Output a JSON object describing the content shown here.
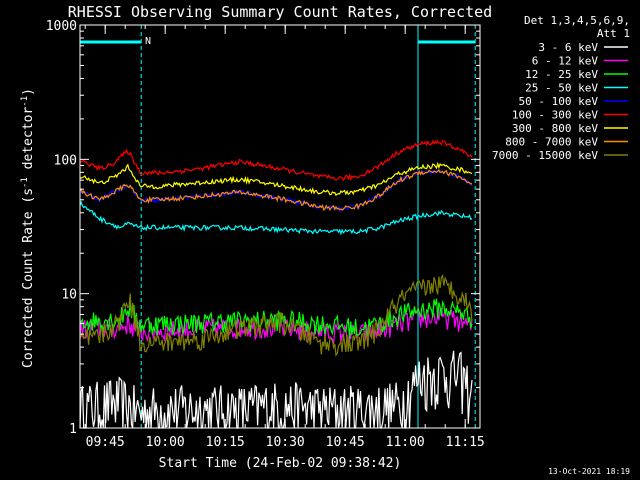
{
  "chart_data": {
    "type": "line",
    "title": "RHESSI Observing Summary Count Rates, Corrected",
    "xlabel": "Start Time (24-Feb-02 09:38:42)",
    "ylabel_main": "Corrected Count Rate (s",
    "ylabel_sup1": "-1",
    "ylabel_mid": " detector",
    "ylabel_sup2": "-1",
    "ylabel_end": ")",
    "yscale": "log",
    "ylim": [
      1,
      1000
    ],
    "xlim_minutes": [
      0,
      100
    ],
    "x_unit": "minutes after 09:38:42",
    "x_ticks": [
      {
        "label": "09:45",
        "t": 6.3
      },
      {
        "label": "10:00",
        "t": 21.3
      },
      {
        "label": "10:15",
        "t": 36.3
      },
      {
        "label": "10:30",
        "t": 51.3
      },
      {
        "label": "10:45",
        "t": 66.3
      },
      {
        "label": "11:00",
        "t": 81.3
      },
      {
        "label": "11:15",
        "t": 96.3
      }
    ],
    "y_ticks": [
      {
        "label": "1",
        "v": 1
      },
      {
        "label": "10",
        "v": 10
      },
      {
        "label": "100",
        "v": 100
      },
      {
        "label": "1000",
        "v": 1000
      }
    ],
    "legend": {
      "placement": "top-right",
      "header1": "Det 1,3,4,5,6,9,",
      "header2": "Att 1"
    },
    "annotations": {
      "night_marker": "N",
      "footer_date": "13-Oct-2021 18:19"
    },
    "bands": [
      {
        "start": 0,
        "end": 15.3,
        "color": "#00ffff"
      },
      {
        "start": 84.5,
        "end": 98.8,
        "color": "#00ffff"
      }
    ],
    "series": [
      {
        "name": "3 - 6 keV",
        "color": "#ffffff",
        "t": [
          0,
          10,
          15,
          20,
          30,
          40,
          50,
          60,
          70,
          80,
          85,
          90,
          95,
          98
        ],
        "values": [
          1.4,
          1.6,
          1.3,
          1.4,
          1.4,
          1.4,
          1.5,
          1.4,
          1.4,
          1.5,
          2.4,
          2.6,
          2.5,
          1.8
        ]
      },
      {
        "name": "6 - 12 keV",
        "color": "#ff00ff",
        "t": [
          0,
          10,
          12,
          15,
          20,
          30,
          40,
          50,
          60,
          70,
          75,
          80,
          85,
          90,
          95,
          98
        ],
        "values": [
          5.5,
          5.6,
          6.0,
          5.2,
          5.3,
          5.5,
          5.6,
          5.6,
          5.2,
          5.0,
          5.4,
          6.0,
          6.5,
          6.7,
          6.3,
          5.6
        ]
      },
      {
        "name": "12 - 25 keV",
        "color": "#00ff00",
        "t": [
          0,
          10,
          12,
          15,
          20,
          30,
          40,
          50,
          60,
          70,
          75,
          80,
          85,
          90,
          95,
          98
        ],
        "values": [
          6.2,
          6.5,
          8.0,
          5.9,
          6.0,
          6.1,
          6.3,
          6.4,
          6.0,
          5.5,
          6.0,
          7.0,
          7.6,
          7.9,
          7.4,
          6.6
        ]
      },
      {
        "name": "25 - 50 keV",
        "color": "#00ffff",
        "t": [
          0,
          5,
          10,
          12,
          15,
          20,
          30,
          40,
          50,
          60,
          65,
          70,
          75,
          80,
          85,
          90,
          95,
          98
        ],
        "values": [
          47,
          36,
          31,
          33,
          31,
          31,
          31,
          31,
          30,
          29,
          29,
          29,
          31,
          35,
          38,
          40,
          38,
          37
        ]
      },
      {
        "name": "50 - 100 keV",
        "color": "#0000ff",
        "t": [
          0,
          5,
          9,
          12,
          15,
          20,
          30,
          40,
          50,
          60,
          65,
          70,
          75,
          80,
          85,
          90,
          95,
          98
        ],
        "values": [
          58,
          50,
          58,
          65,
          50,
          50,
          53,
          57,
          51,
          44,
          43,
          45,
          54,
          70,
          80,
          82,
          74,
          64
        ]
      },
      {
        "name": "100 - 300 keV",
        "color": "#ff0000",
        "t": [
          0,
          5,
          8,
          12,
          15,
          20,
          30,
          40,
          50,
          60,
          65,
          70,
          75,
          80,
          85,
          90,
          95,
          98
        ],
        "values": [
          98,
          85,
          92,
          115,
          80,
          79,
          85,
          96,
          85,
          74,
          72,
          75,
          90,
          115,
          130,
          135,
          118,
          102
        ]
      },
      {
        "name": "300 - 800 keV",
        "color": "#ffff00",
        "t": [
          0,
          5,
          9,
          12,
          15,
          20,
          30,
          40,
          50,
          60,
          65,
          70,
          75,
          80,
          85,
          90,
          95,
          98
        ],
        "values": [
          76,
          66,
          75,
          88,
          63,
          63,
          67,
          71,
          64,
          57,
          56,
          58,
          65,
          79,
          87,
          90,
          84,
          80
        ]
      },
      {
        "name": "800 - 7000 keV",
        "color": "#ff8c00",
        "t": [
          0,
          5,
          9,
          12,
          15,
          20,
          30,
          40,
          50,
          60,
          65,
          70,
          75,
          80,
          85,
          90,
          95,
          98
        ],
        "values": [
          58,
          50,
          58,
          65,
          50,
          50,
          53,
          57,
          51,
          44,
          43,
          45,
          54,
          70,
          80,
          82,
          74,
          64
        ]
      },
      {
        "name": "7000 - 15000 keV",
        "color": "#808000",
        "t": [
          0,
          5,
          10,
          12,
          15,
          20,
          30,
          40,
          50,
          60,
          65,
          70,
          75,
          80,
          85,
          90,
          95,
          98
        ],
        "values": [
          4.5,
          4.8,
          6.2,
          9.5,
          4.4,
          4.3,
          4.6,
          5.5,
          6.2,
          4.3,
          4.2,
          4.3,
          5.5,
          9.0,
          11.0,
          12.0,
          10.0,
          7.5
        ]
      }
    ]
  }
}
